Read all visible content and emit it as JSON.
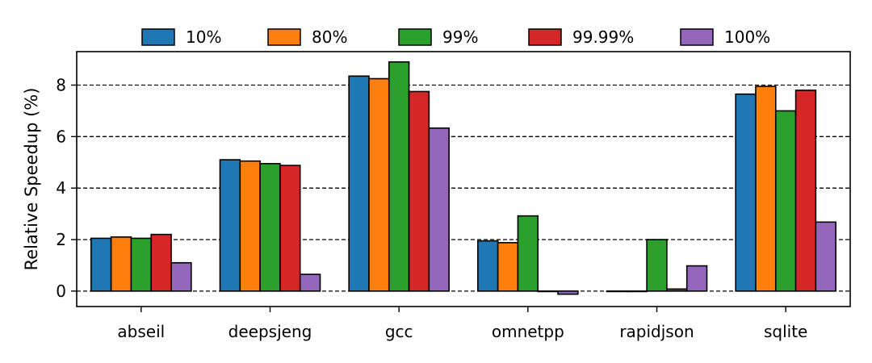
{
  "chart_data": {
    "type": "bar",
    "title": "",
    "xlabel": "",
    "ylabel": "Relative Speedup (%)",
    "categories": [
      "abseil",
      "deepsjeng",
      "gcc",
      "omnetpp",
      "rapidjson",
      "sqlite"
    ],
    "series": [
      {
        "name": "10%",
        "color": "#1f77b4",
        "values": [
          2.05,
          5.1,
          8.35,
          1.95,
          0.0,
          7.65
        ]
      },
      {
        "name": "80%",
        "color": "#ff7f0e",
        "values": [
          2.1,
          5.05,
          8.25,
          1.88,
          0.0,
          7.95
        ]
      },
      {
        "name": "99%",
        "color": "#2ca02c",
        "values": [
          2.05,
          4.95,
          8.9,
          2.92,
          2.0,
          7.0
        ]
      },
      {
        "name": "99.99%",
        "color": "#d62728",
        "values": [
          2.2,
          4.88,
          7.75,
          0.0,
          0.08,
          7.8
        ]
      },
      {
        "name": "100%",
        "color": "#9467bd",
        "values": [
          1.1,
          0.65,
          6.33,
          -0.12,
          0.98,
          2.68
        ]
      }
    ],
    "ylim": [
      -0.6,
      9.3
    ],
    "yticks": [
      0,
      2,
      4,
      6,
      8
    ],
    "grid": "y-dashed",
    "legend_position": "top"
  }
}
